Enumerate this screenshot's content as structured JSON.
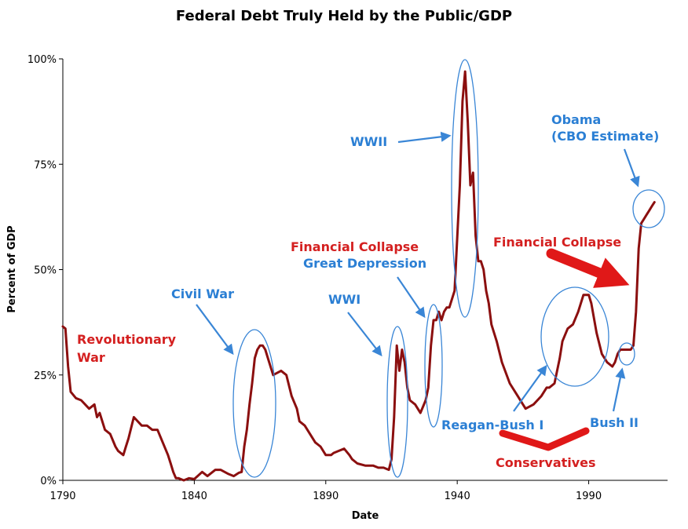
{
  "chart_data": {
    "type": "line",
    "title": "Federal Debt Truly Held by the Public/GDP",
    "xlabel": "Date",
    "ylabel": "Percent of GDP",
    "xlim": [
      1790,
      2020
    ],
    "ylim": [
      0,
      100
    ],
    "x_ticks": [
      1790,
      1840,
      1890,
      1940,
      1990
    ],
    "y_ticks": [
      0,
      25,
      50,
      75,
      100
    ],
    "y_tick_labels": [
      "0%",
      "25%",
      "50%",
      "75%",
      "100%"
    ],
    "grid": false,
    "line_color": "#8b0f0f",
    "series": [
      {
        "x": [
          1790,
          1791,
          1792,
          1793,
          1795,
          1797,
          1800,
          1802,
          1803,
          1804,
          1806,
          1808,
          1810,
          1811,
          1813,
          1814,
          1815,
          1817,
          1820,
          1822,
          1824,
          1826,
          1828,
          1830,
          1831,
          1832,
          1833,
          1834,
          1836,
          1838,
          1840,
          1843,
          1845,
          1848,
          1850,
          1853,
          1855,
          1857,
          1858,
          1859,
          1860,
          1861,
          1862,
          1863,
          1864,
          1865,
          1866,
          1867,
          1868,
          1870,
          1873,
          1875,
          1877,
          1879,
          1880,
          1882,
          1884,
          1886,
          1888,
          1890,
          1892,
          1893,
          1895,
          1897,
          1899,
          1900,
          1902,
          1905,
          1908,
          1910,
          1912,
          1914,
          1915,
          1916,
          1917,
          1918,
          1919,
          1920,
          1921,
          1922,
          1924,
          1926,
          1928,
          1929,
          1930,
          1931,
          1932,
          1933,
          1934,
          1935,
          1936,
          1937,
          1939,
          1941,
          1942,
          1943,
          1944,
          1945,
          1946,
          1947,
          1948,
          1949,
          1950,
          1951,
          1952,
          1953,
          1955,
          1957,
          1960,
          1963,
          1966,
          1969,
          1972,
          1974,
          1975,
          1977,
          1979,
          1980,
          1982,
          1984,
          1986,
          1988,
          1990,
          1991,
          1993,
          1995,
          1997,
          1999,
          2000,
          2001,
          2002,
          2004,
          2006,
          2007,
          2008,
          2009,
          2010,
          2011,
          2012,
          2013,
          2014,
          2015
        ],
        "values": [
          36.5,
          36,
          27,
          21,
          19.5,
          19,
          17,
          18,
          15,
          16,
          12,
          11,
          8,
          7,
          6,
          8,
          10,
          15,
          13,
          13,
          12,
          12,
          9,
          6,
          4,
          2,
          0.5,
          0.5,
          0,
          0.5,
          0.3,
          2,
          1,
          2.5,
          2.5,
          1.5,
          1,
          1.8,
          2,
          8,
          12,
          18,
          23,
          29,
          31,
          32,
          32,
          31,
          29,
          25,
          26,
          25,
          20,
          17,
          14,
          13,
          11,
          9,
          8,
          6,
          6,
          6.5,
          7,
          7.5,
          6,
          5,
          4,
          3.5,
          3.5,
          3,
          3,
          2.5,
          5,
          15,
          32,
          26,
          31,
          28,
          22,
          19,
          18,
          16,
          19,
          22,
          32,
          38,
          38,
          40,
          38,
          40,
          41,
          41,
          45,
          70,
          90,
          97,
          85,
          70,
          73,
          58,
          52,
          52,
          50,
          45,
          42,
          37,
          33,
          28,
          23,
          20,
          17,
          18,
          20,
          22,
          22,
          23,
          29,
          33,
          36,
          37,
          40,
          44,
          44,
          42,
          35,
          30,
          28,
          27,
          28,
          30,
          31,
          31,
          31,
          32,
          40,
          55,
          61,
          62,
          63,
          64,
          65,
          66
        ]
      }
    ],
    "annotations": [
      {
        "text": "Revolutionary",
        "color": "#d42020"
      },
      {
        "text": "War",
        "color": "#d42020"
      },
      {
        "text": "Civil War",
        "color": "#2b7fd4"
      },
      {
        "text": "WWI",
        "color": "#2b7fd4"
      },
      {
        "text": "Financial Collapse",
        "color": "#d42020"
      },
      {
        "text": "Great Depression",
        "color": "#2b7fd4"
      },
      {
        "text": "WWII",
        "color": "#2b7fd4"
      },
      {
        "text": "Obama",
        "color": "#2b7fd4"
      },
      {
        "text": "(CBO Estimate)",
        "color": "#2b7fd4"
      },
      {
        "text": "Financial Collapse",
        "color": "#d42020"
      },
      {
        "text": "Reagan-Bush I",
        "color": "#2b7fd4"
      },
      {
        "text": "Bush II",
        "color": "#2b7fd4"
      },
      {
        "text": "Conservatives",
        "color": "#d42020"
      }
    ],
    "colors": {
      "annotation_blue": "#2b7fd4",
      "annotation_red": "#d42020",
      "ellipse_blue": "#3a86d6",
      "axis": "#000000"
    }
  }
}
